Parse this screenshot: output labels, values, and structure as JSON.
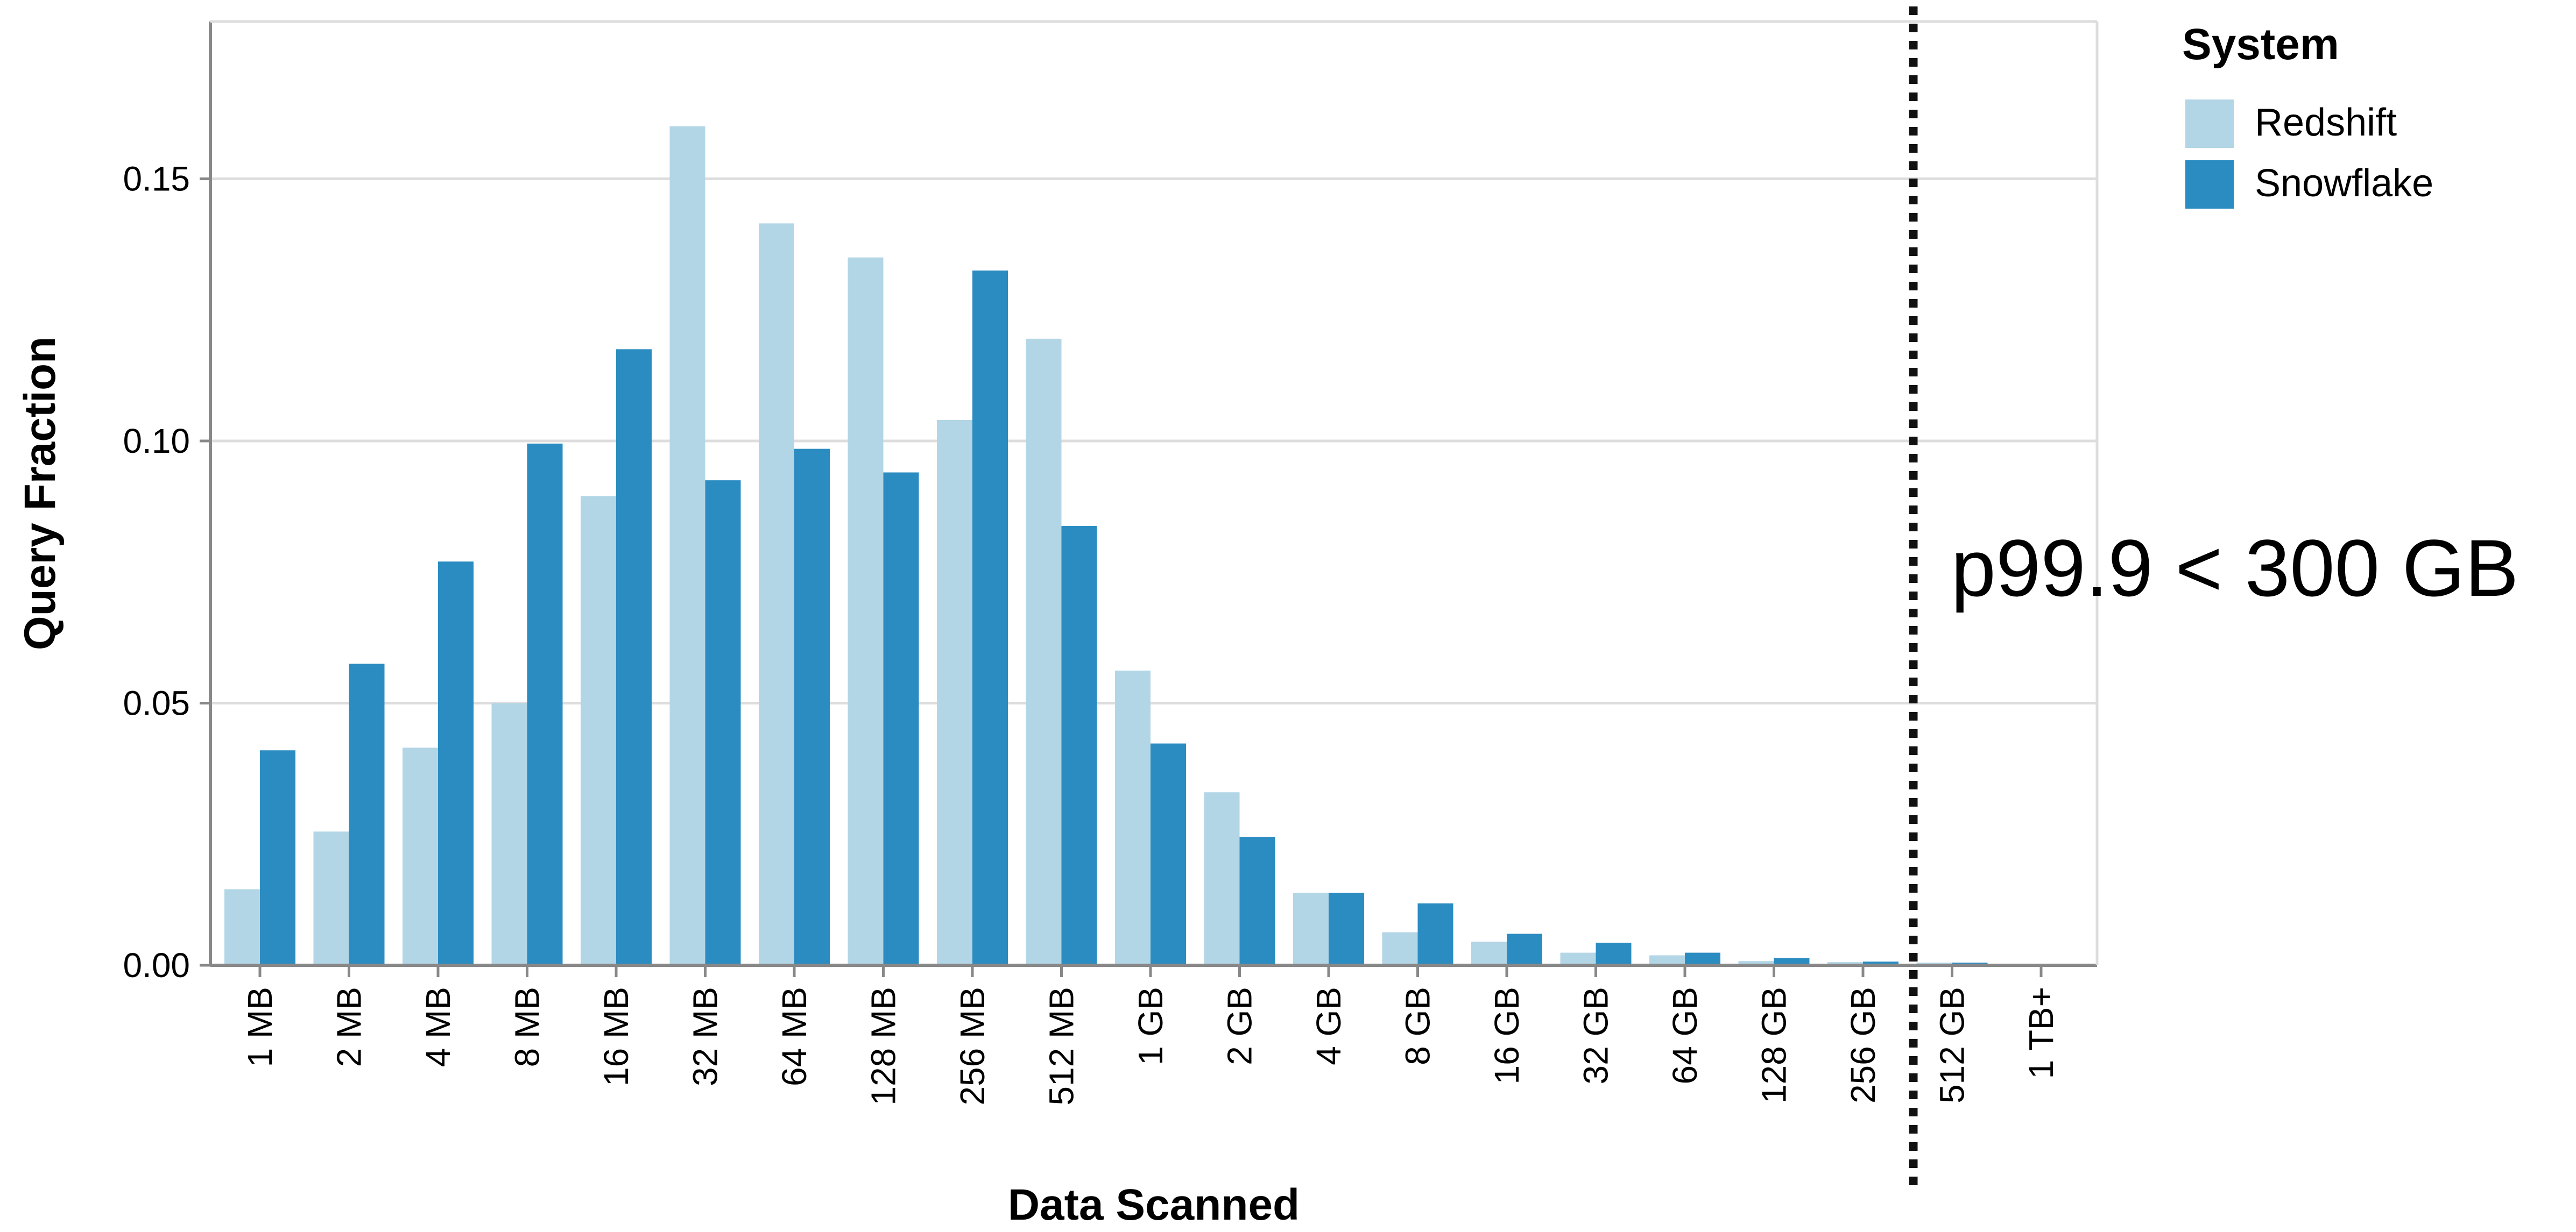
{
  "chart_data": {
    "type": "bar",
    "xlabel": "Data Scanned",
    "ylabel": "Query Fraction",
    "ylim": [
      0,
      0.18
    ],
    "yticks": [
      "0.00",
      "0.05",
      "0.10",
      "0.15"
    ],
    "ytick_values": [
      0,
      0.05,
      0.1,
      0.15
    ],
    "grid": true,
    "legend": {
      "title": "System",
      "position": "top-right"
    },
    "categories": [
      "1 MB",
      "2 MB",
      "4 MB",
      "8 MB",
      "16 MB",
      "32 MB",
      "64 MB",
      "128 MB",
      "256 MB",
      "512 MB",
      "1 GB",
      "2 GB",
      "4 GB",
      "8 GB",
      "16 GB",
      "32 GB",
      "64 GB",
      "128 GB",
      "256 GB",
      "512 GB",
      "1 TB+"
    ],
    "series": [
      {
        "name": "Redshift",
        "color": "#b3d6e6",
        "values": [
          0.0145,
          0.0255,
          0.0415,
          0.05,
          0.0895,
          0.16,
          0.1415,
          0.135,
          0.104,
          0.1195,
          0.0562,
          0.033,
          0.0138,
          0.0063,
          0.0045,
          0.0024,
          0.0019,
          0.0008,
          0.0006,
          0.0005,
          0.0003
        ]
      },
      {
        "name": "Snowflake",
        "color": "#2b8cc1",
        "values": [
          0.041,
          0.0575,
          0.077,
          0.0995,
          0.1175,
          0.0925,
          0.0985,
          0.094,
          0.1325,
          0.0838,
          0.0423,
          0.0245,
          0.0138,
          0.0118,
          0.006,
          0.0043,
          0.0024,
          0.0014,
          0.0007,
          0.0005,
          0.0003
        ]
      }
    ],
    "annotation": {
      "text": "p99.9 < 300 GB",
      "after_category": "256 GB"
    }
  }
}
